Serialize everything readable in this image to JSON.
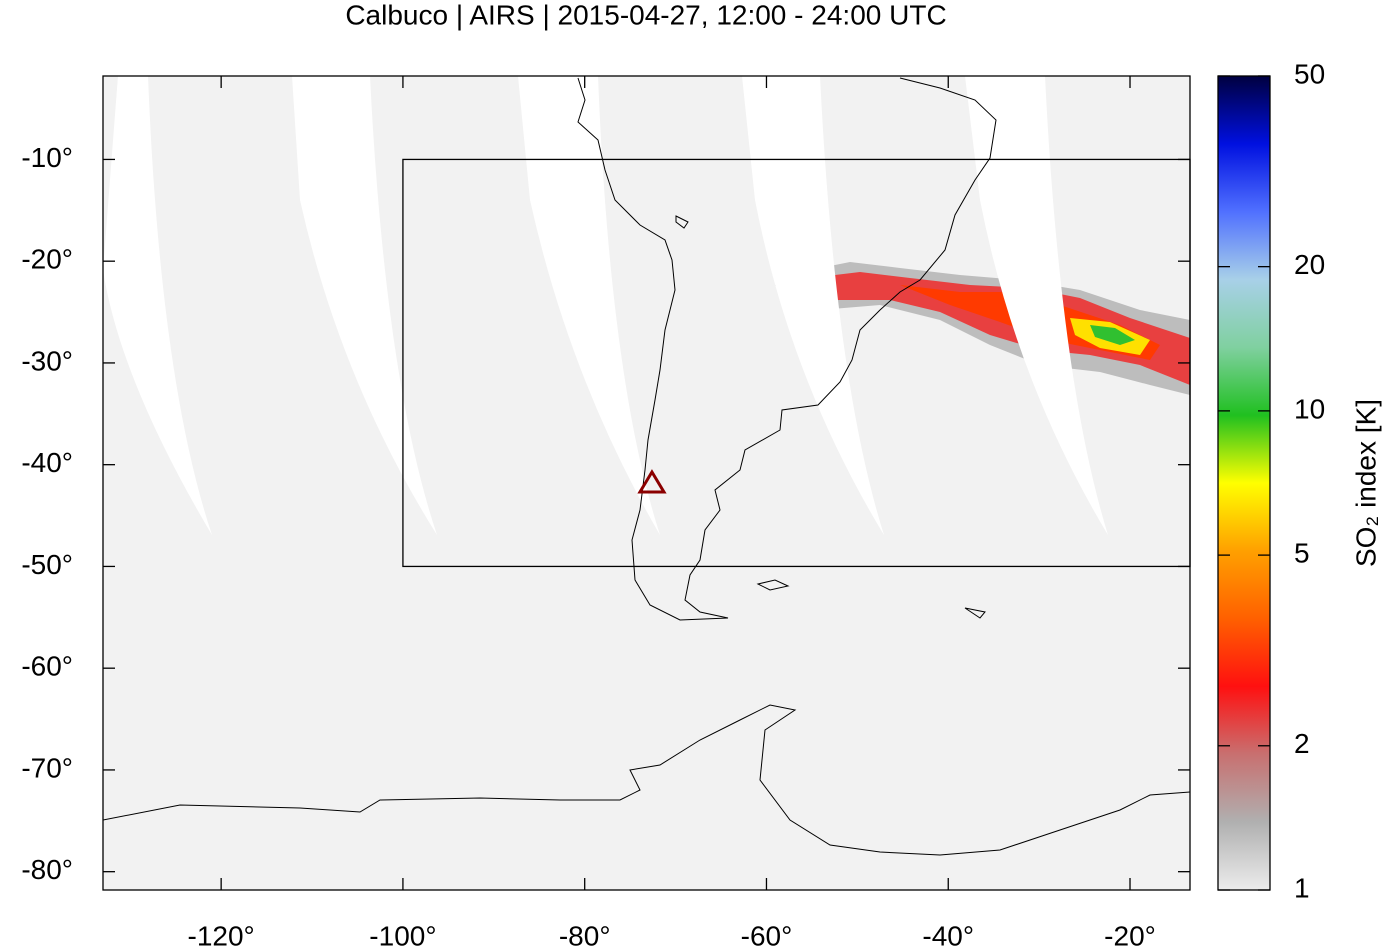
{
  "chart_data": {
    "type": "map",
    "title": "Calbuco | AIRS | 2015-04-27, 12:00 - 24:00 UTC",
    "xlim": [
      -133,
      -13.4
    ],
    "ylim": [
      -81.8,
      -1.8
    ],
    "xticks": [
      {
        "value": -120,
        "label": "-120°"
      },
      {
        "value": -100,
        "label": "-100°"
      },
      {
        "value": -80,
        "label": "-80°"
      },
      {
        "value": -60,
        "label": "-60°"
      },
      {
        "value": -40,
        "label": "-40°"
      },
      {
        "value": -20,
        "label": "-20°"
      }
    ],
    "yticks": [
      {
        "value": -10,
        "label": "-10°"
      },
      {
        "value": -20,
        "label": "-20°"
      },
      {
        "value": -30,
        "label": "-30°"
      },
      {
        "value": -40,
        "label": "-40°"
      },
      {
        "value": -50,
        "label": "-50°"
      },
      {
        "value": -60,
        "label": "-60°"
      },
      {
        "value": -70,
        "label": "-70°"
      },
      {
        "value": -80,
        "label": "-80°"
      }
    ],
    "box": {
      "lon": [
        -100,
        -13.4
      ],
      "lat": [
        -50,
        -10
      ]
    },
    "volcano": {
      "lon": -72.6,
      "lat": -41.8
    },
    "colorbar": {
      "label": "SO₂ index [K]",
      "log_scale": true,
      "lim": [
        1,
        50
      ],
      "ticks": [
        1,
        2,
        5,
        10,
        20,
        50
      ],
      "colors": [
        "#ececec",
        "#b0b0b0",
        "#c87070",
        "#ff1010",
        "#ff6000",
        "#ffa000",
        "#ffff00",
        "#20c020",
        "#80d0a0",
        "#a8d0e8",
        "#5070ff",
        "#0010e0",
        "#000040"
      ]
    }
  }
}
